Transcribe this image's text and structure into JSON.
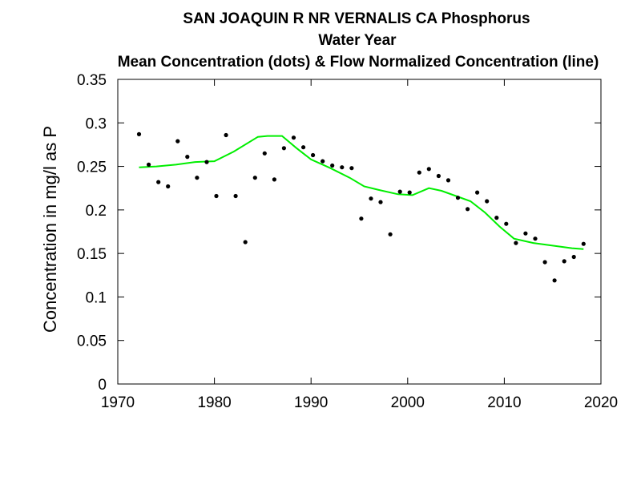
{
  "chart_data": {
    "type": "scatter",
    "title_lines": [
      "SAN JOAQUIN R NR VERNALIS CA   Phosphorus",
      "Water Year",
      "Mean Concentration (dots) & Flow Normalized Concentration (line)"
    ],
    "xlabel": "",
    "ylabel": "Concentration in mg/l as P",
    "xlim": [
      1970,
      2020
    ],
    "ylim": [
      0,
      0.35
    ],
    "x_ticks": [
      "1970",
      "1980",
      "1990",
      "2000",
      "2010",
      "2020"
    ],
    "y_ticks": [
      "0",
      "0.05",
      "0.1",
      "0.15",
      "0.2",
      "0.25",
      "0.3",
      "0.35"
    ],
    "grid": false,
    "series": [
      {
        "kind": "dots",
        "color": "#000000",
        "x": [
          1972.2,
          1973.2,
          1974.2,
          1975.2,
          1976.2,
          1977.2,
          1978.2,
          1979.2,
          1980.2,
          1981.2,
          1982.2,
          1983.2,
          1984.2,
          1985.2,
          1986.2,
          1987.2,
          1988.2,
          1989.2,
          1990.2,
          1991.2,
          1992.2,
          1993.2,
          1994.2,
          1995.2,
          1996.2,
          1997.2,
          1998.2,
          1999.2,
          2000.2,
          2001.2,
          2002.2,
          2003.2,
          2004.2,
          2005.2,
          2006.2,
          2007.2,
          2008.2,
          2009.2,
          2010.2,
          2011.2,
          2012.2,
          2013.2,
          2014.2,
          2015.2,
          2016.2,
          2017.2,
          2018.2
        ],
        "y": [
          0.287,
          0.252,
          0.232,
          0.227,
          0.279,
          0.261,
          0.237,
          0.255,
          0.216,
          0.286,
          0.216,
          0.163,
          0.237,
          0.265,
          0.235,
          0.271,
          0.283,
          0.272,
          0.263,
          0.256,
          0.251,
          0.249,
          0.248,
          0.19,
          0.213,
          0.209,
          0.172,
          0.221,
          0.22,
          0.243,
          0.247,
          0.239,
          0.234,
          0.214,
          0.201,
          0.22,
          0.21,
          0.191,
          0.184,
          0.162,
          0.173,
          0.167,
          0.14,
          0.119,
          0.141,
          0.146,
          0.161
        ]
      },
      {
        "kind": "line",
        "color": "#00ee00",
        "x": [
          1972.2,
          1974,
          1976,
          1978,
          1980,
          1982,
          1984.5,
          1985.5,
          1987,
          1988.5,
          1990,
          1992,
          1994,
          1995.5,
          1997,
          1999,
          2000.5,
          2002.2,
          2003.5,
          2005,
          2006.5,
          2008,
          2009.5,
          2011,
          2013,
          2015,
          2017,
          2018.2
        ],
        "y": [
          0.249,
          0.25,
          0.252,
          0.255,
          0.256,
          0.267,
          0.284,
          0.285,
          0.285,
          0.271,
          0.258,
          0.248,
          0.237,
          0.227,
          0.223,
          0.218,
          0.217,
          0.225,
          0.222,
          0.216,
          0.21,
          0.197,
          0.181,
          0.167,
          0.162,
          0.159,
          0.156,
          0.155
        ]
      }
    ]
  }
}
